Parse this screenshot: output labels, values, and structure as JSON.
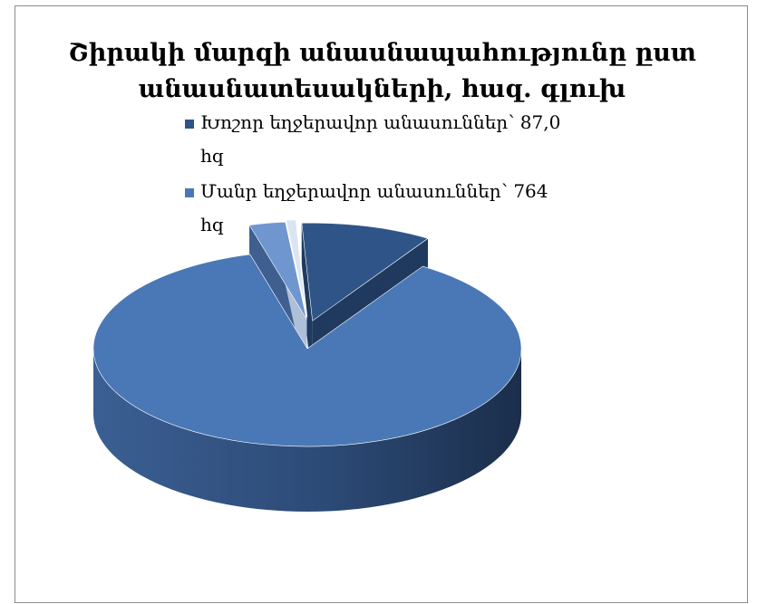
{
  "chart_data": {
    "type": "pie",
    "title_line1": "Շիրակի մարզի անասնապահությունը ըստ",
    "title_line2": "անասնատեսակների, հազ. գլուխ",
    "slices": [
      {
        "label": "Խոշոր եղջերավոր անասուններ՝ 87,0",
        "unit": "hq",
        "value": 87.0,
        "color": "#2f5588",
        "side": "#1f3a5e"
      },
      {
        "label": "Մանր եղջերավոր անասուններ՝ 764",
        "unit": "hq",
        "value": 764,
        "color": "#4a78b6",
        "side": "#2a4770"
      },
      {
        "label": "",
        "unit": "",
        "value": 24,
        "color": "#6f96cf",
        "side": "#3e5f8f"
      },
      {
        "label": "",
        "unit": "",
        "value": 7,
        "color": "#dbe5f2",
        "side": "#aebfd8"
      }
    ],
    "legend_position": "top-right",
    "style": "3d"
  }
}
